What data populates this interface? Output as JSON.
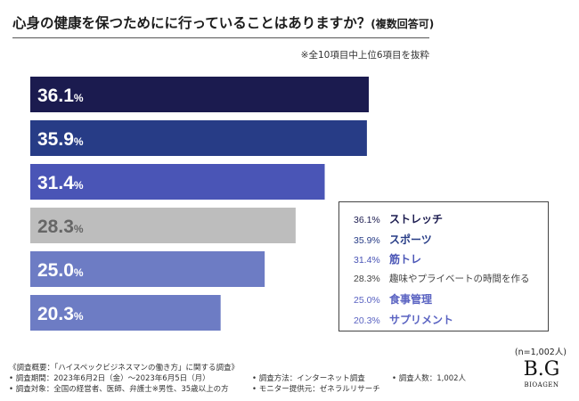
{
  "header": {
    "title_main": "心身の健康を保つためにに行っていることはありますか？",
    "title_sub": "(複数回答可)",
    "note": "※全10項目中上位6項目を抜粋"
  },
  "chart_data": {
    "type": "bar",
    "orientation": "horizontal",
    "title": "心身の健康を保つためにに行っていることはありますか？(複数回答可)",
    "categories": [
      "ストレッチ",
      "スポーツ",
      "筋トレ",
      "趣味やプライベートの時間を作る",
      "食事管理",
      "サプリメント"
    ],
    "values": [
      36.1,
      35.9,
      31.4,
      28.3,
      25.0,
      20.3
    ],
    "value_labels": [
      "36.1%",
      "35.9%",
      "31.4%",
      "28.3%",
      "25.0%",
      "20.3%"
    ],
    "unit": "%",
    "xlim": [
      0,
      47
    ],
    "colors": [
      "#1b1b4f",
      "#273c86",
      "#4a55b6",
      "#bdbdbd",
      "#6d7cc4",
      "#6d7cc4"
    ],
    "legend_colors": [
      "#1b1b4f",
      "#273c86",
      "#4a55b6",
      "#444444",
      "#5a63c2",
      "#5a63c2"
    ],
    "legend_placement": "bottom-right"
  },
  "footer": {
    "sample_size": "(n=1,002人)",
    "survey_summary": "《調査概要：「ハイスペックビジネスマンの働き方」に関する調査》",
    "period": "• 調査期間：2023年6月2日（金）〜2023年6月5日（月）",
    "target": "• 調査対象：全国の経営者、医師、弁護士※男性、35歳以上の方",
    "method": "• 調査方法：インターネット調査",
    "provider": "• モニター提供元：ゼネラルリサーチ",
    "count": "• 調査人数：1,002人",
    "logo_mark": "B.G",
    "logo_text": "BIOAGEN"
  }
}
